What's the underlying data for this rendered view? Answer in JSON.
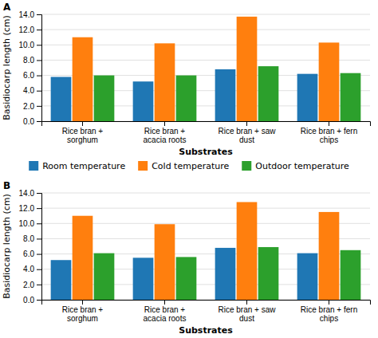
{
  "chart_data": [
    {
      "type": "bar",
      "title": "A",
      "xlabel": "Substrates",
      "ylabel": "Basidiocarp length (cm)",
      "categories": [
        "Rice bran +\nsorghum",
        "Rice bran +\nacacia roots",
        "Rice bran + saw\ndust",
        "Rice bran + fern\nchips"
      ],
      "series": [
        {
          "name": "Room temperature",
          "values": [
            5.8,
            5.2,
            6.8,
            6.2
          ]
        },
        {
          "name": "Cold temperature",
          "values": [
            11.0,
            10.2,
            13.7,
            10.3
          ]
        },
        {
          "name": "Outdoor temperature",
          "values": [
            6.0,
            6.0,
            7.2,
            6.3
          ]
        }
      ],
      "ylim": [
        0,
        14.0
      ],
      "yticks": [
        {
          "value": 0,
          "label": "0.0"
        },
        {
          "value": 2,
          "label": "2.0"
        },
        {
          "value": 4,
          "label": "4.0"
        },
        {
          "value": 6,
          "label": "6.0"
        },
        {
          "value": 8,
          "label": "8.0"
        },
        {
          "value": 10,
          "label": "10.0"
        },
        {
          "value": 12,
          "label": "12.0"
        },
        {
          "value": 14,
          "label": "14.0"
        }
      ],
      "grid": true,
      "legend": "bottom"
    },
    {
      "type": "bar",
      "title": "B",
      "xlabel": "Substrates",
      "ylabel": "Basidiocarp length (cm)",
      "categories": [
        "Rice bran +\nsorghum",
        "Rice bran +\nacacia roots",
        "Rice bran + saw\ndust",
        "Rice bran + fern\nchips"
      ],
      "series": [
        {
          "name": "Room temperature",
          "values": [
            5.2,
            5.5,
            6.8,
            6.1
          ]
        },
        {
          "name": "Cold temperature",
          "values": [
            11.0,
            9.9,
            12.8,
            11.5
          ]
        },
        {
          "name": "Outdoor temperature",
          "values": [
            6.1,
            5.6,
            6.9,
            6.5
          ]
        }
      ],
      "ylim": [
        0,
        14.0
      ],
      "yticks": [
        {
          "value": 0,
          "label": "0.0"
        },
        {
          "value": 2,
          "label": "2.0"
        },
        {
          "value": 4,
          "label": "4.0"
        },
        {
          "value": 6,
          "label": "6.0"
        },
        {
          "value": 8,
          "label": "8.0"
        },
        {
          "value": 10,
          "label": "10.0"
        },
        {
          "value": 12,
          "label": "12.0"
        },
        {
          "value": 14,
          "label": "14.0"
        }
      ],
      "grid": true
    }
  ]
}
